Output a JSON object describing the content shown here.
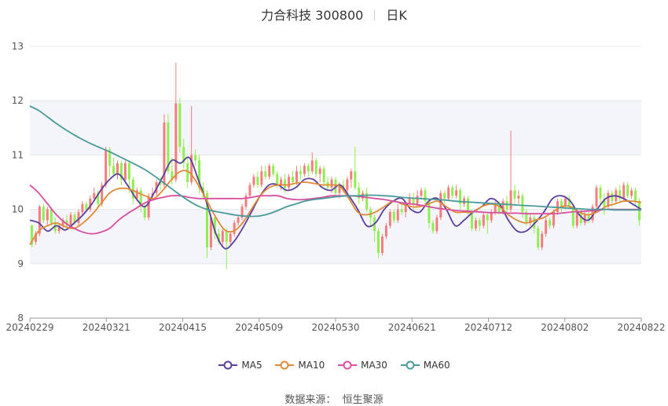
{
  "title": {
    "name": "力合科技 300800",
    "period": "日K"
  },
  "source": {
    "label": "数据来源：",
    "value": "恒生聚源"
  },
  "colors": {
    "up": "#f47c7c",
    "down": "#90ee50",
    "ma5": "#5b3f9c",
    "ma10": "#e08a3a",
    "ma30": "#d84fa0",
    "ma60": "#4a9a9a",
    "band": "#f3f5fa",
    "grid": "#e6e6e6"
  },
  "chart_data": {
    "type": "candlestick",
    "y_ticks": [
      "8",
      "9",
      "10",
      "11",
      "12",
      "13"
    ],
    "ylim": [
      8,
      13
    ],
    "x_tick_labels": [
      "20240229",
      "20240321",
      "20240415",
      "20240509",
      "20240530",
      "20240621",
      "20240712",
      "20240802",
      "20240822"
    ],
    "legend": [
      "MA5",
      "MA10",
      "MA30",
      "MA60"
    ],
    "candles": [
      [
        9.7,
        9.35,
        9.72,
        9.3
      ],
      [
        9.4,
        9.55,
        9.6,
        9.35
      ],
      [
        9.55,
        10.05,
        10.08,
        9.5
      ],
      [
        10.05,
        9.8,
        10.1,
        9.75
      ],
      [
        9.8,
        10.0,
        10.05,
        9.7
      ],
      [
        10.0,
        9.75,
        10.05,
        9.7
      ],
      [
        9.75,
        9.6,
        9.85,
        9.55
      ],
      [
        9.6,
        9.7,
        9.75,
        9.55
      ],
      [
        9.7,
        9.8,
        9.85,
        9.65
      ],
      [
        9.8,
        9.7,
        9.9,
        9.65
      ],
      [
        9.7,
        9.9,
        9.95,
        9.65
      ],
      [
        9.9,
        9.75,
        9.95,
        9.7
      ],
      [
        9.75,
        9.95,
        10.0,
        9.7
      ],
      [
        9.95,
        10.1,
        10.15,
        9.9
      ],
      [
        10.1,
        10.0,
        10.15,
        9.95
      ],
      [
        10.0,
        10.2,
        10.25,
        9.95
      ],
      [
        10.2,
        10.3,
        10.4,
        10.15
      ],
      [
        10.3,
        10.1,
        10.35,
        10.05
      ],
      [
        10.1,
        10.45,
        10.5,
        10.05
      ],
      [
        10.45,
        11.1,
        11.15,
        10.4
      ],
      [
        11.1,
        10.8,
        11.15,
        10.6
      ],
      [
        10.8,
        10.65,
        10.95,
        10.6
      ],
      [
        10.65,
        10.85,
        10.9,
        10.55
      ],
      [
        10.85,
        10.55,
        10.9,
        10.45
      ],
      [
        10.55,
        10.85,
        10.9,
        10.5
      ],
      [
        10.85,
        10.55,
        10.9,
        10.3
      ],
      [
        10.55,
        10.2,
        10.6,
        10.1
      ],
      [
        10.2,
        10.35,
        10.4,
        10.15
      ],
      [
        10.35,
        10.05,
        10.4,
        9.95
      ],
      [
        10.05,
        9.85,
        10.1,
        9.8
      ],
      [
        9.85,
        10.25,
        10.3,
        9.8
      ],
      [
        10.25,
        10.3,
        10.4,
        10.2
      ],
      [
        10.3,
        10.5,
        10.55,
        10.25
      ],
      [
        10.5,
        10.45,
        10.6,
        10.35
      ],
      [
        10.45,
        11.6,
        11.75,
        10.4
      ],
      [
        11.6,
        10.7,
        11.75,
        10.65
      ],
      [
        10.7,
        10.55,
        10.95,
        10.45
      ],
      [
        10.55,
        11.95,
        12.7,
        10.5
      ],
      [
        11.95,
        11.15,
        12.05,
        11.05
      ],
      [
        11.15,
        10.85,
        11.3,
        10.75
      ],
      [
        10.85,
        10.5,
        10.95,
        10.4
      ],
      [
        10.5,
        11.0,
        11.9,
        10.45
      ],
      [
        11.0,
        10.9,
        11.1,
        10.8
      ],
      [
        10.9,
        10.4,
        11.0,
        10.3
      ],
      [
        10.4,
        10.3,
        10.5,
        10.2
      ],
      [
        10.3,
        9.3,
        10.35,
        9.1
      ],
      [
        9.3,
        9.85,
        9.9,
        9.25
      ],
      [
        9.85,
        9.55,
        9.9,
        9.45
      ],
      [
        9.55,
        9.4,
        9.65,
        9.35
      ],
      [
        9.4,
        9.6,
        9.65,
        9.3
      ],
      [
        9.6,
        9.4,
        9.65,
        8.9
      ],
      [
        9.4,
        9.55,
        9.6,
        9.35
      ],
      [
        9.55,
        9.75,
        9.8,
        9.5
      ],
      [
        9.75,
        9.85,
        9.9,
        9.7
      ],
      [
        9.85,
        10.05,
        10.1,
        9.8
      ],
      [
        10.05,
        10.25,
        10.3,
        10.0
      ],
      [
        10.25,
        10.45,
        10.5,
        10.2
      ],
      [
        10.45,
        10.6,
        10.65,
        10.4
      ],
      [
        10.6,
        10.45,
        10.7,
        10.4
      ],
      [
        10.45,
        10.7,
        10.8,
        10.4
      ],
      [
        10.7,
        10.6,
        10.8,
        10.55
      ],
      [
        10.6,
        10.8,
        10.85,
        10.55
      ],
      [
        10.8,
        10.65,
        10.85,
        10.6
      ],
      [
        10.65,
        10.45,
        10.7,
        10.4
      ],
      [
        10.45,
        10.55,
        10.6,
        10.35
      ],
      [
        10.55,
        10.4,
        10.65,
        10.3
      ],
      [
        10.4,
        10.6,
        10.65,
        10.35
      ],
      [
        10.6,
        10.5,
        10.7,
        10.45
      ],
      [
        10.5,
        10.7,
        10.8,
        10.45
      ],
      [
        10.7,
        10.65,
        10.8,
        10.55
      ],
      [
        10.65,
        10.8,
        10.85,
        10.6
      ],
      [
        10.8,
        10.7,
        10.85,
        10.6
      ],
      [
        10.7,
        10.9,
        11.05,
        10.65
      ],
      [
        10.9,
        10.65,
        10.95,
        10.6
      ],
      [
        10.65,
        10.75,
        10.8,
        10.5
      ],
      [
        10.75,
        10.5,
        10.8,
        10.45
      ],
      [
        10.5,
        10.4,
        10.6,
        10.35
      ],
      [
        10.4,
        10.55,
        10.6,
        10.3
      ],
      [
        10.55,
        10.3,
        10.6,
        10.25
      ],
      [
        10.3,
        10.45,
        10.5,
        10.2
      ],
      [
        10.45,
        10.35,
        10.55,
        10.3
      ],
      [
        10.35,
        10.55,
        10.6,
        10.3
      ],
      [
        10.55,
        10.7,
        10.75,
        10.4
      ],
      [
        10.7,
        10.4,
        11.15,
        10.35
      ],
      [
        10.4,
        10.2,
        10.5,
        10.1
      ],
      [
        10.2,
        10.3,
        10.35,
        10.15
      ],
      [
        10.3,
        10.0,
        10.4,
        9.95
      ],
      [
        10.0,
        9.85,
        10.05,
        9.7
      ],
      [
        9.85,
        9.6,
        9.9,
        9.4
      ],
      [
        9.6,
        9.2,
        9.65,
        9.1
      ],
      [
        9.2,
        9.5,
        9.55,
        9.15
      ],
      [
        9.5,
        9.7,
        9.75,
        9.45
      ],
      [
        9.7,
        9.95,
        10.0,
        9.65
      ],
      [
        9.95,
        9.8,
        10.0,
        9.75
      ],
      [
        9.8,
        10.0,
        10.1,
        9.75
      ],
      [
        10.0,
        9.95,
        10.1,
        9.9
      ],
      [
        9.95,
        10.1,
        10.15,
        9.85
      ],
      [
        10.1,
        10.2,
        10.3,
        10.05
      ],
      [
        10.2,
        10.1,
        10.3,
        10.0
      ],
      [
        10.1,
        10.25,
        10.35,
        10.05
      ],
      [
        10.25,
        10.35,
        10.4,
        10.2
      ],
      [
        10.35,
        10.15,
        10.4,
        10.1
      ],
      [
        10.15,
        9.75,
        10.2,
        9.65
      ],
      [
        9.75,
        9.6,
        9.8,
        9.55
      ],
      [
        9.6,
        9.85,
        9.9,
        9.55
      ],
      [
        9.85,
        10.3,
        10.35,
        9.8
      ],
      [
        10.3,
        10.2,
        10.35,
        10.1
      ],
      [
        10.2,
        10.4,
        10.45,
        10.15
      ],
      [
        10.4,
        10.25,
        10.45,
        10.2
      ],
      [
        10.25,
        10.35,
        10.45,
        10.2
      ],
      [
        10.35,
        10.1,
        10.4,
        10.0
      ],
      [
        10.1,
        10.2,
        10.25,
        10.05
      ],
      [
        10.2,
        9.95,
        10.25,
        9.9
      ],
      [
        9.95,
        9.65,
        10.0,
        9.6
      ],
      [
        9.65,
        9.8,
        9.85,
        9.6
      ],
      [
        9.8,
        9.7,
        9.85,
        9.6
      ],
      [
        9.7,
        9.9,
        9.95,
        9.65
      ],
      [
        9.9,
        9.8,
        9.95,
        9.55
      ],
      [
        9.8,
        9.95,
        10.0,
        9.75
      ],
      [
        9.95,
        10.1,
        10.15,
        9.9
      ],
      [
        10.1,
        9.95,
        10.15,
        9.9
      ],
      [
        9.95,
        10.15,
        10.2,
        9.9
      ],
      [
        10.15,
        10.0,
        10.25,
        9.95
      ],
      [
        10.0,
        10.35,
        11.45,
        9.95
      ],
      [
        10.35,
        10.2,
        10.45,
        10.1
      ],
      [
        10.2,
        10.25,
        10.35,
        10.1
      ],
      [
        10.25,
        9.95,
        10.3,
        9.85
      ],
      [
        9.95,
        9.75,
        10.0,
        9.7
      ],
      [
        9.75,
        9.85,
        9.9,
        9.7
      ],
      [
        9.85,
        9.65,
        9.9,
        9.55
      ],
      [
        9.65,
        9.3,
        9.7,
        9.25
      ],
      [
        9.3,
        9.55,
        9.6,
        9.25
      ],
      [
        9.55,
        9.8,
        9.85,
        9.5
      ],
      [
        9.8,
        9.7,
        9.85,
        9.65
      ],
      [
        9.7,
        9.95,
        10.0,
        9.65
      ],
      [
        9.95,
        10.15,
        10.2,
        9.9
      ],
      [
        10.15,
        10.05,
        10.2,
        9.95
      ],
      [
        10.05,
        10.2,
        10.25,
        10.0
      ],
      [
        10.2,
        10.05,
        10.25,
        10.0
      ],
      [
        10.05,
        9.7,
        10.1,
        9.65
      ],
      [
        9.7,
        9.95,
        10.0,
        9.65
      ],
      [
        9.95,
        9.75,
        10.0,
        9.7
      ],
      [
        9.75,
        9.9,
        9.95,
        9.7
      ],
      [
        9.9,
        9.8,
        9.95,
        9.75
      ],
      [
        9.8,
        10.05,
        10.1,
        9.75
      ],
      [
        10.05,
        10.4,
        10.45,
        10.0
      ],
      [
        10.4,
        10.2,
        10.45,
        10.1
      ],
      [
        10.2,
        10.05,
        10.3,
        9.9
      ],
      [
        10.05,
        10.3,
        10.35,
        10.0
      ],
      [
        10.3,
        10.15,
        10.35,
        10.05
      ],
      [
        10.15,
        10.35,
        10.4,
        10.1
      ],
      [
        10.35,
        10.2,
        10.45,
        10.15
      ],
      [
        10.2,
        10.45,
        10.5,
        10.15
      ],
      [
        10.45,
        10.25,
        10.5,
        10.2
      ],
      [
        10.25,
        10.35,
        10.4,
        10.2
      ],
      [
        10.35,
        10.15,
        10.4,
        10.05
      ],
      [
        10.15,
        9.8,
        10.2,
        9.7
      ]
    ],
    "series": [
      {
        "name": "MA5",
        "values": [
          9.8,
          9.75,
          9.6,
          9.7,
          9.62,
          9.75,
          9.9,
          10.1,
          10.35,
          10.55,
          10.65,
          10.45,
          10.2,
          10.05,
          10.3,
          10.6,
          10.9,
          10.85,
          10.95,
          10.55,
          10.1,
          9.55,
          9.28,
          9.4,
          9.65,
          9.95,
          10.25,
          10.45,
          10.45,
          10.35,
          10.4,
          10.55,
          10.55,
          10.4,
          10.35,
          10.45,
          10.25,
          10.0,
          9.7,
          9.75,
          10.0,
          10.15,
          10.2,
          10.0,
          9.95,
          10.15,
          10.2,
          10.0,
          9.7,
          9.8,
          9.95,
          10.05,
          10.2,
          10.1,
          9.8,
          9.6,
          9.6,
          9.75,
          9.95,
          10.2,
          10.25,
          10.15,
          9.9,
          9.8,
          10.0,
          10.2,
          10.25,
          10.2,
          10.1,
          10.0
        ]
      },
      {
        "name": "MA10",
        "values": [
          9.35,
          9.6,
          9.7,
          9.75,
          9.68,
          9.65,
          9.75,
          9.9,
          10.1,
          10.3,
          10.38,
          10.38,
          10.32,
          10.25,
          10.2,
          10.35,
          10.55,
          10.7,
          10.68,
          10.45,
          10.15,
          9.85,
          9.62,
          9.6,
          9.75,
          10.0,
          10.25,
          10.4,
          10.45,
          10.45,
          10.48,
          10.5,
          10.48,
          10.45,
          10.45,
          10.42,
          10.2,
          9.95,
          9.9,
          9.95,
          10.05,
          10.15,
          10.1,
          10.05,
          10.05,
          10.1,
          10.15,
          10.05,
          9.95,
          9.95,
          9.95,
          10.05,
          10.1,
          10.05,
          9.9,
          9.8,
          9.75,
          9.8,
          9.85,
          9.95,
          10.05,
          10.05,
          9.95,
          9.9,
          9.95,
          10.05,
          10.1,
          10.15,
          10.15,
          10.13
        ]
      },
      {
        "name": "MA30",
        "values": [
          10.45,
          10.3,
          10.1,
          9.9,
          9.75,
          9.65,
          9.58,
          9.55,
          9.58,
          9.65,
          9.8,
          9.92,
          10.02,
          10.12,
          10.18,
          10.22,
          10.25,
          10.25,
          10.22,
          10.2,
          10.2,
          10.2,
          10.2,
          10.2,
          10.2,
          10.22,
          10.25,
          10.25,
          10.25,
          10.2,
          10.18,
          10.18,
          10.2,
          10.22,
          10.25,
          10.25,
          10.25,
          10.24,
          10.22,
          10.2,
          10.18,
          10.15,
          10.12,
          10.1,
          10.08,
          10.05,
          10.02,
          10.0,
          9.98,
          9.97,
          9.96,
          9.95,
          9.94,
          9.94,
          9.93,
          9.93,
          9.92,
          9.92,
          9.92,
          9.92,
          9.93,
          9.95,
          9.96,
          9.97,
          9.98,
          10.0,
          10.0,
          10.0,
          10.0,
          10.0
        ]
      },
      {
        "name": "MA60",
        "values": [
          11.9,
          11.82,
          11.7,
          11.58,
          11.47,
          11.37,
          11.28,
          11.2,
          11.13,
          11.06,
          10.98,
          10.9,
          10.82,
          10.73,
          10.62,
          10.5,
          10.38,
          10.26,
          10.15,
          10.06,
          10.0,
          9.96,
          9.93,
          9.9,
          9.88,
          9.87,
          9.88,
          9.92,
          9.98,
          10.05,
          10.1,
          10.15,
          10.18,
          10.2,
          10.22,
          10.24,
          10.25,
          10.25,
          10.26,
          10.26,
          10.25,
          10.24,
          10.22,
          10.21,
          10.2,
          10.19,
          10.18,
          10.17,
          10.15,
          10.14,
          10.13,
          10.12,
          10.11,
          10.1,
          10.09,
          10.08,
          10.07,
          10.06,
          10.05,
          10.04,
          10.03,
          10.02,
          10.01,
          10.0,
          10.0,
          10.0,
          9.99,
          9.99,
          9.99,
          9.99
        ]
      }
    ]
  }
}
